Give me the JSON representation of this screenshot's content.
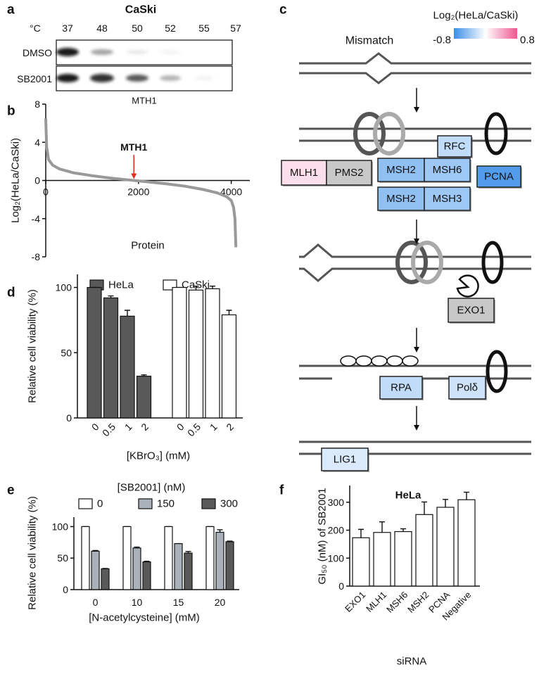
{
  "panel_labels": [
    "a",
    "b",
    "c",
    "d",
    "e",
    "f"
  ],
  "blot": {
    "title": "CaSki",
    "unit": "°C",
    "temperatures": [
      37,
      48,
      50,
      52,
      55,
      57
    ],
    "rows": [
      "DMSO",
      "SB2001"
    ],
    "caption": "MTH1"
  },
  "diagram": {
    "colorbar": {
      "title": "Log₂(HeLa/CaSki)",
      "min": -0.8,
      "max": 0.8,
      "colors": [
        "#3a8ee8",
        "#ffffff",
        "#f0568f"
      ],
      "missing_color": "#c8c8c8"
    },
    "mismatch_label": "Mismatch",
    "proteins": [
      {
        "label": "RFC",
        "value": -0.25
      },
      {
        "label": "MLH1",
        "value": 0.15
      },
      {
        "label": "PMS2",
        "value": null
      },
      {
        "label": "MSH2",
        "value": -0.45
      },
      {
        "label": "MSH6",
        "value": -0.4
      },
      {
        "label": "PCNA",
        "value": -0.7
      },
      {
        "label": "MSH2",
        "value": -0.45
      },
      {
        "label": "MSH3",
        "value": -0.4
      },
      {
        "label": "EXO1",
        "value": null
      },
      {
        "label": "RPA",
        "value": -0.25
      },
      {
        "label": "Polδ",
        "value": -0.2
      },
      {
        "label": "LIG1",
        "value": -0.15
      }
    ]
  },
  "chart_data": [
    {
      "type": "line",
      "ylabel": "Log₂(HeLa/CaSki)",
      "xlabel": "Protein",
      "x": [
        0,
        20,
        60,
        150,
        300,
        600,
        1000,
        1400,
        1800,
        2200,
        2600,
        3000,
        3400,
        3700,
        3900,
        4000,
        4050,
        4080,
        4100
      ],
      "values": [
        6.5,
        3.5,
        2.2,
        1.6,
        1.2,
        0.8,
        0.5,
        0.25,
        0.05,
        -0.15,
        -0.35,
        -0.6,
        -0.95,
        -1.3,
        -1.7,
        -2.1,
        -2.8,
        -4,
        -7
      ],
      "color": "#999999",
      "xlim": [
        0,
        4400
      ],
      "ylim": [
        -8,
        8
      ],
      "xticks": [
        0,
        2000,
        4000
      ],
      "yticks": [
        -8,
        -4,
        0,
        4,
        8
      ],
      "annotations": [
        {
          "text": "MTH1",
          "x": 1900,
          "color": "#e0301e"
        }
      ]
    },
    {
      "type": "bar",
      "ylabel": "Relative cell viability (%)",
      "xlabel": "[KBrO₃] (mM)",
      "categories": [
        "0",
        "0.5",
        "1",
        "2"
      ],
      "series": [
        {
          "name": "HeLa",
          "color": "#595959",
          "values": [
            100,
            92,
            78,
            32
          ],
          "errors": [
            0,
            1.5,
            4.5,
            1
          ]
        },
        {
          "name": "CaSki",
          "color": "#ffffff",
          "values": [
            100,
            98,
            99,
            79
          ],
          "errors": [
            0,
            3,
            2,
            3.5
          ]
        }
      ],
      "ylim": [
        0,
        110
      ],
      "yticks": [
        0,
        50,
        100
      ]
    },
    {
      "type": "bar",
      "ylabel": "Relative cell viability (%)",
      "xlabel": "[N-acetylcysteine] (mM)",
      "legend_title": "[SB2001] (nM)",
      "categories": [
        "0",
        "10",
        "15",
        "20"
      ],
      "series": [
        {
          "name": "0",
          "color": "#ffffff",
          "values": [
            100,
            100,
            100,
            100
          ],
          "errors": [
            0,
            0,
            0,
            0
          ]
        },
        {
          "name": "150",
          "color": "#a9b1ba",
          "values": [
            61,
            66,
            73,
            91
          ],
          "errors": [
            1,
            1.5,
            0,
            4
          ]
        },
        {
          "name": "300",
          "color": "#595959",
          "values": [
            33,
            44,
            58,
            76
          ],
          "errors": [
            0.5,
            1,
            2.5,
            1
          ]
        }
      ],
      "ylim": [
        0,
        115
      ],
      "yticks": [
        0,
        50,
        100
      ]
    },
    {
      "type": "bar",
      "title": "HeLa",
      "ylabel": "GI₅₀ (nM) of SB2001",
      "xlabel": "siRNA",
      "categories": [
        "EXO1",
        "MLH1",
        "MSH6",
        "MSH2",
        "PCNA",
        "Negative"
      ],
      "series": [
        {
          "color": "#ffffff",
          "values": [
            173,
            192,
            195,
            256,
            282,
            309
          ],
          "errors": [
            30,
            38,
            10,
            45,
            28,
            27
          ]
        }
      ],
      "ylim": [
        0,
        360
      ],
      "yticks": [
        0,
        100,
        200,
        300
      ]
    }
  ]
}
